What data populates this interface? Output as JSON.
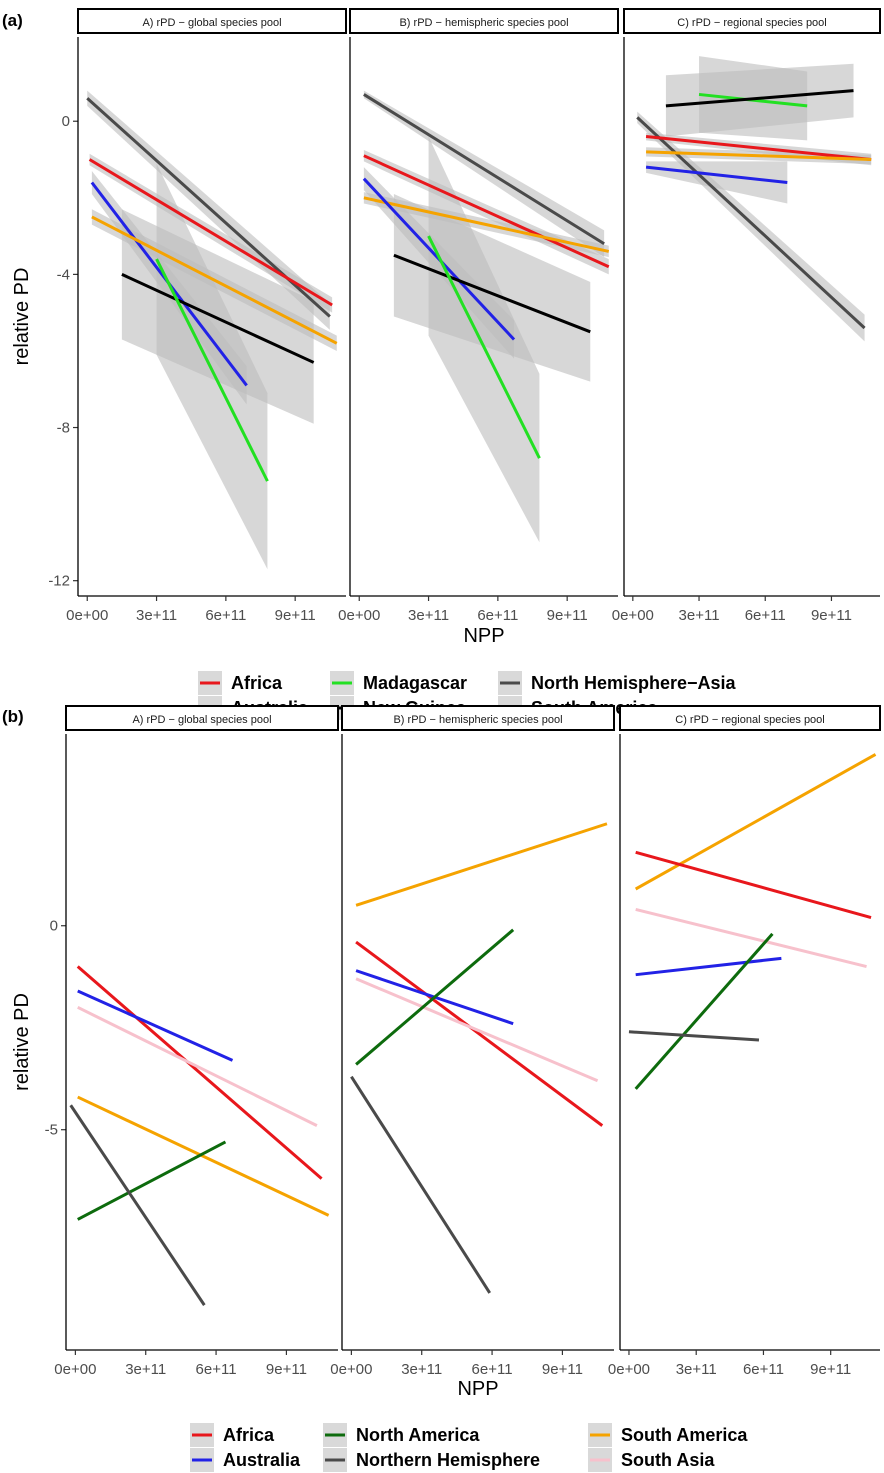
{
  "chart_data": [
    {
      "tag": "(a)",
      "type": "line",
      "xlabel": "NPP",
      "ylabel": "relative PD",
      "xlim": [
        -40000000000,
        1120000000000
      ],
      "ylim": [
        -12.4,
        2.2
      ],
      "xticks": [
        0,
        300000000000,
        600000000000,
        900000000000
      ],
      "xtick_labels": [
        "0e+00",
        "3e+11",
        "6e+11",
        "9e+11"
      ],
      "yticks": [
        0,
        -4,
        -8,
        -12
      ],
      "ytick_labels": [
        "0",
        "-4",
        "-8",
        "-12"
      ],
      "grid": false,
      "confidence_bands": true,
      "legend": {
        "position": "bottom",
        "columns": [
          [
            "Africa",
            "Australia"
          ],
          [
            "Madagascar",
            "New Guinea"
          ],
          [
            "North Hemisphere−Asia",
            "South America"
          ]
        ]
      },
      "colors": {
        "Africa": "#e8171c",
        "Australia": "#2222e6",
        "Madagascar": "#22e022",
        "New Guinea": "#000000",
        "North Hemisphere−Asia": "#4a4a4a",
        "South America": "#f5a300"
      },
      "panels": [
        {
          "strip": "A) rPD − global species pool",
          "series": [
            {
              "name": "North Hemisphere−Asia",
              "x": [
                0,
                1050000000000
              ],
              "y": [
                0.6,
                -5.1
              ],
              "band": [
                0.2,
                0.35
              ]
            },
            {
              "name": "Africa",
              "x": [
                10000000000,
                1060000000000
              ],
              "y": [
                -1.0,
                -4.8
              ],
              "band": [
                0.15,
                0.2
              ]
            },
            {
              "name": "Australia",
              "x": [
                20000000000,
                690000000000
              ],
              "y": [
                -1.6,
                -6.9
              ],
              "band": [
                0.3,
                0.5
              ]
            },
            {
              "name": "South America",
              "x": [
                20000000000,
                1080000000000
              ],
              "y": [
                -2.5,
                -5.8
              ],
              "band": [
                0.2,
                0.2
              ]
            },
            {
              "name": "New Guinea",
              "x": [
                150000000000,
                980000000000
              ],
              "y": [
                -4.0,
                -6.3
              ],
              "band": [
                1.7,
                1.6
              ]
            },
            {
              "name": "Madagascar",
              "x": [
                300000000000,
                780000000000
              ],
              "y": [
                -3.6,
                -9.4
              ],
              "band": [
                2.5,
                2.3
              ]
            }
          ]
        },
        {
          "strip": "B) rPD − hemispheric species pool",
          "series": [
            {
              "name": "North Hemisphere−Asia",
              "x": [
                20000000000,
                1060000000000
              ],
              "y": [
                0.7,
                -3.2
              ],
              "band": [
                0.1,
                0.35
              ]
            },
            {
              "name": "Africa",
              "x": [
                20000000000,
                1080000000000
              ],
              "y": [
                -0.9,
                -3.8
              ],
              "band": [
                0.15,
                0.2
              ]
            },
            {
              "name": "South America",
              "x": [
                20000000000,
                1080000000000
              ],
              "y": [
                -2.0,
                -3.4
              ],
              "band": [
                0.15,
                0.15
              ]
            },
            {
              "name": "Australia",
              "x": [
                20000000000,
                670000000000
              ],
              "y": [
                -1.5,
                -5.7
              ],
              "band": [
                0.3,
                0.5
              ]
            },
            {
              "name": "New Guinea",
              "x": [
                150000000000,
                1000000000000
              ],
              "y": [
                -3.5,
                -5.5
              ],
              "band": [
                1.6,
                1.3
              ]
            },
            {
              "name": "Madagascar",
              "x": [
                300000000000,
                780000000000
              ],
              "y": [
                -3.0,
                -8.8
              ],
              "band": [
                2.6,
                2.2
              ]
            }
          ]
        },
        {
          "strip": "C) rPD − regional species pool",
          "series": [
            {
              "name": "North Hemisphere−Asia",
              "x": [
                20000000000,
                1050000000000
              ],
              "y": [
                0.1,
                -5.4
              ],
              "band": [
                0.15,
                0.35
              ]
            },
            {
              "name": "Africa",
              "x": [
                60000000000,
                1080000000000
              ],
              "y": [
                -0.4,
                -1.0
              ],
              "band": [
                0.1,
                0.15
              ]
            },
            {
              "name": "South America",
              "x": [
                60000000000,
                1080000000000
              ],
              "y": [
                -0.8,
                -1.0
              ],
              "band": [
                0.12,
                0.12
              ]
            },
            {
              "name": "Australia",
              "x": [
                60000000000,
                700000000000
              ],
              "y": [
                -1.2,
                -1.6
              ],
              "band": [
                0.15,
                0.55
              ]
            },
            {
              "name": "Madagascar",
              "x": [
                300000000000,
                790000000000
              ],
              "y": [
                0.7,
                0.4
              ],
              "band": [
                1.0,
                0.9
              ]
            },
            {
              "name": "New Guinea",
              "x": [
                150000000000,
                1000000000000
              ],
              "y": [
                0.4,
                0.8
              ],
              "band": [
                0.8,
                0.7
              ]
            }
          ]
        }
      ]
    },
    {
      "tag": "(b)",
      "type": "line",
      "xlabel": "NPP",
      "ylabel": "relative PD",
      "xlim": [
        -40000000000,
        1120000000000
      ],
      "ylim": [
        -10.4,
        4.7
      ],
      "xticks": [
        0,
        300000000000,
        600000000000,
        900000000000
      ],
      "xtick_labels": [
        "0e+00",
        "3e+11",
        "6e+11",
        "9e+11"
      ],
      "yticks": [
        0,
        -5
      ],
      "ytick_labels": [
        "0",
        "-5"
      ],
      "grid": false,
      "confidence_bands": false,
      "legend": {
        "position": "bottom",
        "columns": [
          [
            "Africa",
            "Australia"
          ],
          [
            "North America",
            "Northern Hemisphere"
          ],
          [
            "South America",
            "South Asia"
          ]
        ]
      },
      "colors": {
        "Africa": "#e8171c",
        "Australia": "#2222e6",
        "North America": "#0d6b0d",
        "Northern Hemisphere": "#4a4a4a",
        "South America": "#f5a300",
        "South Asia": "#f7c1cc"
      },
      "panels": [
        {
          "strip": "A) rPD − global species pool",
          "series": [
            {
              "name": "Africa",
              "x": [
                10000000000,
                1050000000000
              ],
              "y": [
                -1.0,
                -6.2
              ]
            },
            {
              "name": "Australia",
              "x": [
                10000000000,
                670000000000
              ],
              "y": [
                -1.6,
                -3.3
              ]
            },
            {
              "name": "South Asia",
              "x": [
                10000000000,
                1030000000000
              ],
              "y": [
                -2.0,
                -4.9
              ]
            },
            {
              "name": "South America",
              "x": [
                10000000000,
                1080000000000
              ],
              "y": [
                -4.2,
                -7.1
              ]
            },
            {
              "name": "North America",
              "x": [
                10000000000,
                640000000000
              ],
              "y": [
                -7.2,
                -5.3
              ]
            },
            {
              "name": "Northern Hemisphere",
              "x": [
                -20000000000,
                550000000000
              ],
              "y": [
                -4.4,
                -9.3
              ]
            }
          ]
        },
        {
          "strip": "B) rPD − hemispheric species pool",
          "series": [
            {
              "name": "South America",
              "x": [
                20000000000,
                1090000000000
              ],
              "y": [
                0.5,
                2.5
              ]
            },
            {
              "name": "Africa",
              "x": [
                20000000000,
                1070000000000
              ],
              "y": [
                -0.4,
                -4.9
              ]
            },
            {
              "name": "Australia",
              "x": [
                20000000000,
                690000000000
              ],
              "y": [
                -1.1,
                -2.4
              ]
            },
            {
              "name": "South Asia",
              "x": [
                20000000000,
                1050000000000
              ],
              "y": [
                -1.3,
                -3.8
              ]
            },
            {
              "name": "North America",
              "x": [
                20000000000,
                690000000000
              ],
              "y": [
                -3.4,
                -0.1
              ]
            },
            {
              "name": "Northern Hemisphere",
              "x": [
                0,
                590000000000
              ],
              "y": [
                -3.7,
                -9.0
              ]
            }
          ]
        },
        {
          "strip": "C) rPD − regional species pool",
          "series": [
            {
              "name": "South America",
              "x": [
                30000000000,
                1100000000000
              ],
              "y": [
                0.9,
                4.2
              ]
            },
            {
              "name": "Africa",
              "x": [
                30000000000,
                1080000000000
              ],
              "y": [
                1.8,
                0.2
              ]
            },
            {
              "name": "South Asia",
              "x": [
                30000000000,
                1060000000000
              ],
              "y": [
                0.4,
                -1.0
              ]
            },
            {
              "name": "Australia",
              "x": [
                30000000000,
                680000000000
              ],
              "y": [
                -1.2,
                -0.8
              ]
            },
            {
              "name": "North America",
              "x": [
                30000000000,
                640000000000
              ],
              "y": [
                -4.0,
                -0.2
              ]
            },
            {
              "name": "Northern Hemisphere",
              "x": [
                0,
                580000000000
              ],
              "y": [
                -2.6,
                -2.8
              ]
            }
          ]
        }
      ]
    }
  ]
}
